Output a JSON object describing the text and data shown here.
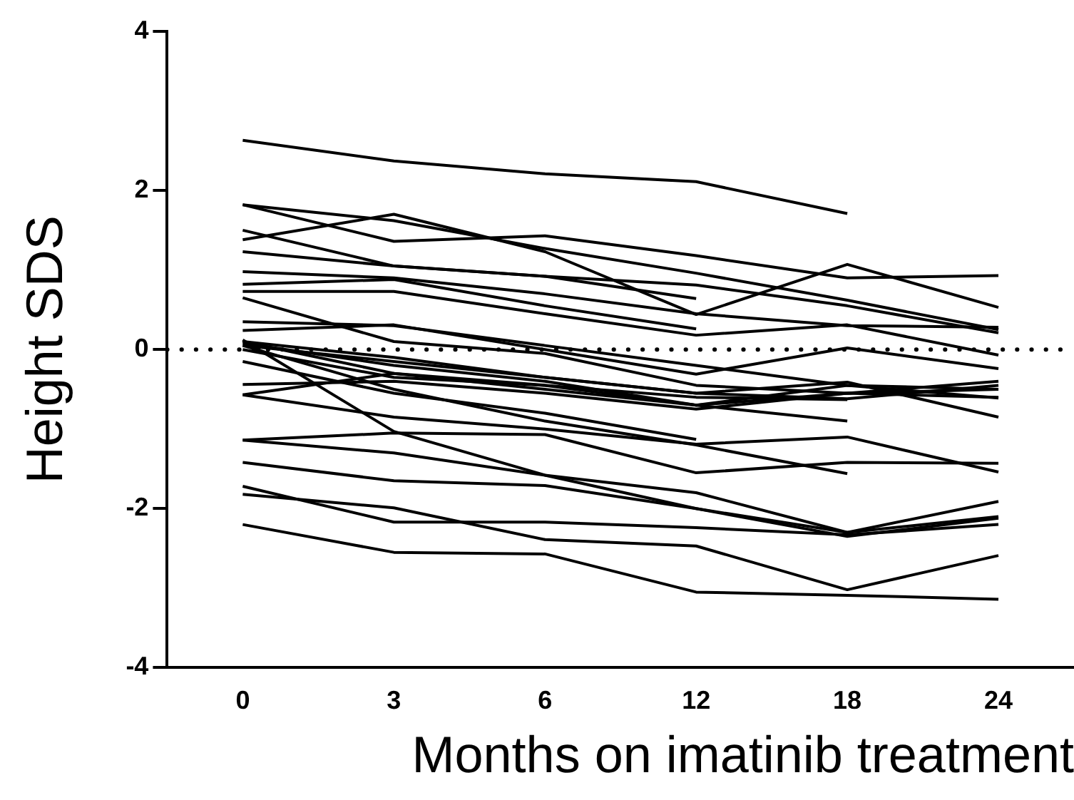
{
  "chart_data": {
    "type": "line",
    "xlabel": "Months on imatinib treatment",
    "ylabel": "Height SDS",
    "categories": [
      "0",
      "3",
      "6",
      "12",
      "18",
      "24"
    ],
    "ylim": [
      -4,
      4
    ],
    "yticks": [
      -4,
      -2,
      0,
      2,
      4
    ],
    "grid": false,
    "legend": false,
    "marker": "none",
    "line_style": "solid",
    "ref_lines": [
      {
        "axis": "y",
        "value": 0,
        "line_style": "dotted",
        "color": "#000000"
      }
    ],
    "series": [
      {
        "color": "#000000",
        "values": [
          2.63,
          2.37,
          2.21,
          2.11,
          1.71,
          null
        ]
      },
      {
        "color": "#000000",
        "values": [
          1.38,
          1.7,
          1.23,
          0.44,
          1.07,
          0.53
        ]
      },
      {
        "color": "#000000",
        "values": [
          1.82,
          1.36,
          1.43,
          1.18,
          0.9,
          0.93
        ]
      },
      {
        "color": "#000000",
        "values": [
          1.82,
          1.62,
          1.27,
          0.96,
          0.62,
          0.25
        ]
      },
      {
        "color": "#000000",
        "values": [
          1.5,
          1.05,
          0.92,
          0.81,
          0.55,
          0.21
        ]
      },
      {
        "color": "#000000",
        "values": [
          1.23,
          1.05,
          0.92,
          0.64,
          null,
          null
        ]
      },
      {
        "color": "#000000",
        "values": [
          0.98,
          0.9,
          0.7,
          0.45,
          0.3,
          0.28
        ]
      },
      {
        "color": "#000000",
        "values": [
          0.82,
          0.88,
          0.55,
          0.26,
          null,
          null
        ]
      },
      {
        "color": "#000000",
        "values": [
          0.73,
          0.73,
          0.45,
          0.18,
          0.31,
          -0.07
        ]
      },
      {
        "color": "#000000",
        "values": [
          0.65,
          0.1,
          -0.05,
          -0.45,
          -0.55,
          -0.4
        ]
      },
      {
        "color": "#000000",
        "values": [
          0.35,
          0.3,
          0.05,
          -0.2,
          -0.45,
          -0.61
        ]
      },
      {
        "color": "#000000",
        "values": [
          0.24,
          0.31,
          0,
          -0.31,
          0.02,
          -0.24
        ]
      },
      {
        "color": "#000000",
        "values": [
          0.12,
          -1.03,
          -1.58,
          -2,
          -2.3,
          -1.91
        ]
      },
      {
        "color": "#000000",
        "values": [
          0.1,
          -0.1,
          -0.35,
          -0.55,
          -0.62,
          -0.45
        ]
      },
      {
        "color": "#000000",
        "values": [
          0.08,
          -0.2,
          -0.4,
          -0.7,
          -0.45,
          -0.5
        ]
      },
      {
        "color": "#000000",
        "values": [
          0.05,
          -0.15,
          -0.35,
          -0.55,
          -0.41,
          -0.85
        ]
      },
      {
        "color": "#000000",
        "values": [
          0.1,
          -0.3,
          -0.45,
          -0.7,
          -0.9,
          null
        ]
      },
      {
        "color": "#000000",
        "values": [
          0,
          -0.35,
          -0.45,
          -0.6,
          -0.63,
          null
        ]
      },
      {
        "color": "#000000",
        "values": [
          -0.15,
          -0.55,
          -0.8,
          -1.13,
          null,
          null
        ]
      },
      {
        "color": "#000000",
        "values": [
          0.05,
          -0.5,
          -0.9,
          -1.2,
          -1.56,
          null
        ]
      },
      {
        "color": "#000000",
        "values": [
          -0.44,
          -0.4,
          -0.55,
          -0.75,
          -0.55,
          -0.6
        ]
      },
      {
        "color": "#000000",
        "values": [
          -0.57,
          -0.3,
          -0.5,
          -0.7,
          -0.55,
          -0.5
        ]
      },
      {
        "color": "#000000",
        "values": [
          -0.57,
          -0.85,
          -1,
          -1.19,
          -1.1,
          -1.54
        ]
      },
      {
        "color": "#000000",
        "values": [
          -1.14,
          -1.05,
          -1.07,
          -1.55,
          -1.42,
          -1.43
        ]
      },
      {
        "color": "#000000",
        "values": [
          -1.14,
          -1.3,
          -1.58,
          -1.8,
          -2.3,
          -2.1
        ]
      },
      {
        "color": "#000000",
        "values": [
          -1.42,
          -1.65,
          -1.71,
          -2,
          -2.35,
          -2.12
        ]
      },
      {
        "color": "#000000",
        "values": [
          -1.72,
          -2.17,
          -2.17,
          -2.24,
          -2.33,
          -2.2
        ]
      },
      {
        "color": "#000000",
        "values": [
          -1.82,
          -1.99,
          -2.39,
          -2.47,
          -3.02,
          -2.59
        ]
      },
      {
        "color": "#000000",
        "values": [
          -2.2,
          -2.55,
          -2.57,
          -3.05,
          -3.09,
          -3.14
        ]
      }
    ]
  }
}
